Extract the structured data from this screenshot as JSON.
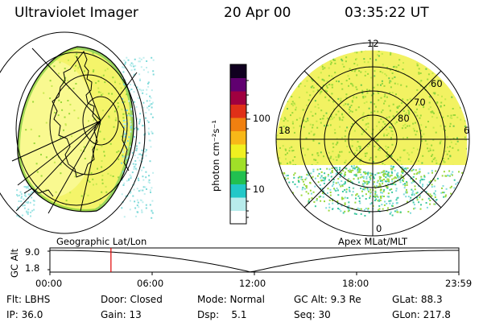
{
  "header": {
    "instrument": "Ultraviolet Imager",
    "date": "20 Apr 00",
    "time": "03:35:22 UT"
  },
  "colorbar": {
    "unit_label": "photon cm⁻²s⁻¹",
    "ticks": [
      "100",
      "10"
    ],
    "scale": "log",
    "colors": [
      "#ffffff",
      "#b8ecec",
      "#22c8c8",
      "#22c050",
      "#a0e028",
      "#f0f020",
      "#f8b818",
      "#f08010",
      "#e03018",
      "#a00040",
      "#600070",
      "#100020"
    ]
  },
  "geo_panel": {
    "label": "Geographic Lat/Lon"
  },
  "polar_panel": {
    "label": "Apex MLat/MLT",
    "mlt_labels": {
      "top": "12",
      "left": "18",
      "right": "6",
      "bottom": "0"
    },
    "mlat_labels": [
      "60",
      "70",
      "80"
    ]
  },
  "timeline": {
    "ylabel": "GC Alt",
    "yticks": [
      "9.0",
      "1.8"
    ],
    "xticks": [
      "00:00",
      "06:00",
      "12:00",
      "18:00",
      "23:59"
    ],
    "cursor_time": "03:35",
    "cursor_color": "#e00000"
  },
  "footer": {
    "row1": [
      "Flt: LBHS",
      "Door: Closed",
      "Mode: Normal",
      "GC Alt: 9.3 Re",
      "GLat: 88.3"
    ],
    "row2": [
      "IP: 36.0",
      "Gain: 13",
      "Dsp:    5.1",
      "Seq: 30",
      "GLon: 217.8"
    ]
  }
}
